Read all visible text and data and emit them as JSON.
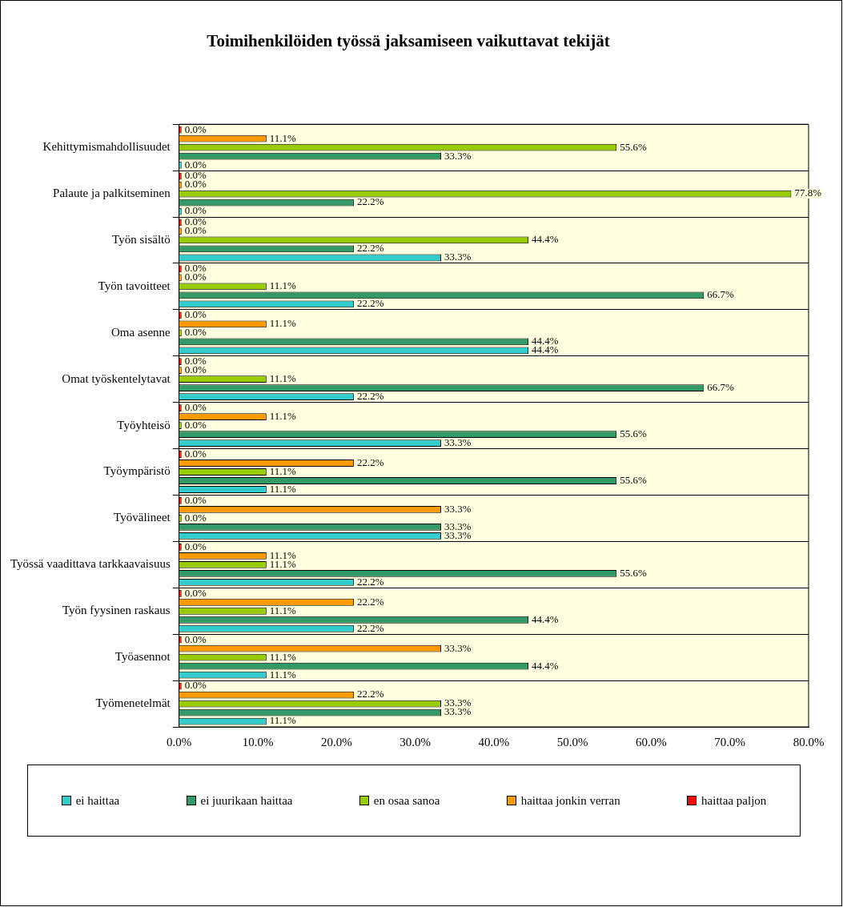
{
  "chart_data": {
    "type": "bar",
    "orientation": "horizontal",
    "title": "Toimihenkilöiden työssä jaksamiseen vaikuttavat tekijät",
    "categories": [
      "Kehittymismahdollisuudet",
      "Palaute ja palkitseminen",
      "Työn sisältö",
      "Työn tavoitteet",
      "Oma asenne",
      "Omat työskentelytavat",
      "Työyhteisö",
      "Työympäristö",
      "Työvälineet",
      "Työssä vaadittava tarkkaavaisuus",
      "Työn fyysinen raskaus",
      "Työasennot",
      "Työmenetelmät"
    ],
    "series": [
      {
        "name": "ei haittaa",
        "color": "#33cccc",
        "values": [
          0,
          0,
          33.3,
          22.2,
          44.4,
          22.2,
          33.3,
          11.1,
          33.3,
          22.2,
          22.2,
          11.1,
          11.1
        ],
        "value_labels": [
          "0.0%",
          "0.0%",
          "33.3%",
          "22.2%",
          "44.4%",
          "22.2%",
          "33.3%",
          "11.1%",
          "33.3%",
          "22.2%",
          "22.2%",
          "11.1%",
          "11.1%"
        ]
      },
      {
        "name": "ei juurikaan haittaa",
        "color": "#339966",
        "values": [
          33.3,
          22.2,
          22.2,
          66.7,
          44.4,
          66.7,
          55.6,
          55.6,
          33.3,
          55.6,
          44.4,
          44.4,
          33.3
        ],
        "value_labels": [
          "33.3%",
          "22.2%",
          "22.2%",
          "66.7%",
          "44.4%",
          "66.7%",
          "55.6%",
          "55.6%",
          "33.3%",
          "55.6%",
          "44.4%",
          "44.4%",
          "33.3%"
        ]
      },
      {
        "name": "en osaa sanoa",
        "color": "#99cc00",
        "values": [
          55.6,
          77.8,
          44.4,
          11.1,
          0,
          11.1,
          0,
          11.1,
          0,
          11.1,
          11.1,
          11.1,
          33.3
        ],
        "value_labels": [
          "55.6%",
          "77.8%",
          "44.4%",
          "11.1%",
          "0.0%",
          "11.1%",
          "0.0%",
          "11.1%",
          "0.0%",
          "11.1%",
          "11.1%",
          "11.1%",
          "33.3%"
        ]
      },
      {
        "name": "haittaa jonkin verran",
        "color": "#ff9900",
        "values": [
          11.1,
          0,
          0,
          0,
          11.1,
          0,
          11.1,
          22.2,
          33.3,
          11.1,
          22.2,
          33.3,
          22.2
        ],
        "value_labels": [
          "11.1%",
          "0.0%",
          "0.0%",
          "0.0%",
          "11.1%",
          "0.0%",
          "11.1%",
          "22.2%",
          "33.3%",
          "11.1%",
          "22.2%",
          "33.3%",
          "22.2%"
        ]
      },
      {
        "name": "haittaa paljon",
        "color": "#ff0000",
        "values": [
          0,
          0,
          0,
          0,
          0,
          0,
          0,
          0,
          0,
          0,
          0,
          0,
          0
        ],
        "value_labels": [
          "0.0%",
          "0.0%",
          "0.0%",
          "0.0%",
          "0.0%",
          "0.0%",
          "0.0%",
          "0.0%",
          "0.0%",
          "0.0%",
          "0.0%",
          "0.0%",
          "0.0%"
        ]
      }
    ],
    "xlim": [
      0,
      80
    ],
    "xticks": [
      {
        "value": 0,
        "label": "0.0%"
      },
      {
        "value": 10,
        "label": "10.0%"
      },
      {
        "value": 20,
        "label": "20.0%"
      },
      {
        "value": 30,
        "label": "30.0%"
      },
      {
        "value": 40,
        "label": "40.0%"
      },
      {
        "value": 50,
        "label": "50.0%"
      },
      {
        "value": 60,
        "label": "60.0%"
      },
      {
        "value": 70,
        "label": "70.0%"
      },
      {
        "value": 80,
        "label": "80.0%"
      }
    ],
    "grid": "y",
    "legend": "bottom"
  }
}
